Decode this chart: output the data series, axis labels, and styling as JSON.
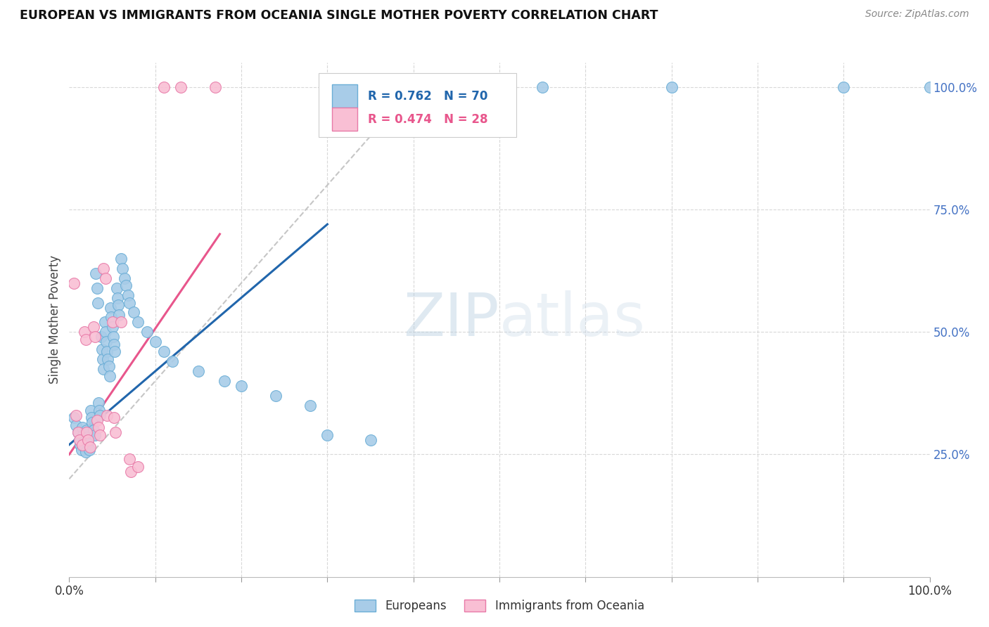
{
  "title": "EUROPEAN VS IMMIGRANTS FROM OCEANIA SINGLE MOTHER POVERTY CORRELATION CHART",
  "source": "Source: ZipAtlas.com",
  "ylabel": "Single Mother Poverty",
  "legend_blue_label": "Europeans",
  "legend_pink_label": "Immigrants from Oceania",
  "R_blue": 0.762,
  "N_blue": 70,
  "R_pink": 0.474,
  "N_pink": 28,
  "blue_color": "#a8cce8",
  "blue_edge_color": "#6baed6",
  "pink_color": "#f9bfd4",
  "pink_edge_color": "#e87aa8",
  "trend_blue_color": "#2166ac",
  "trend_pink_color": "#e8568c",
  "trend_gray_color": "#c0c0c0",
  "watermark_color": "#d5e6f5",
  "blue_points": [
    [
      0.005,
      0.325
    ],
    [
      0.008,
      0.31
    ],
    [
      0.01,
      0.295
    ],
    [
      0.012,
      0.28
    ],
    [
      0.013,
      0.27
    ],
    [
      0.014,
      0.26
    ],
    [
      0.015,
      0.305
    ],
    [
      0.016,
      0.29
    ],
    [
      0.017,
      0.275
    ],
    [
      0.018,
      0.265
    ],
    [
      0.019,
      0.255
    ],
    [
      0.02,
      0.3
    ],
    [
      0.021,
      0.285
    ],
    [
      0.022,
      0.272
    ],
    [
      0.023,
      0.26
    ],
    [
      0.025,
      0.34
    ],
    [
      0.026,
      0.325
    ],
    [
      0.027,
      0.315
    ],
    [
      0.028,
      0.3
    ],
    [
      0.03,
      0.29
    ],
    [
      0.031,
      0.62
    ],
    [
      0.032,
      0.59
    ],
    [
      0.033,
      0.56
    ],
    [
      0.034,
      0.355
    ],
    [
      0.035,
      0.34
    ],
    [
      0.036,
      0.33
    ],
    [
      0.037,
      0.49
    ],
    [
      0.038,
      0.465
    ],
    [
      0.039,
      0.445
    ],
    [
      0.04,
      0.425
    ],
    [
      0.041,
      0.52
    ],
    [
      0.042,
      0.5
    ],
    [
      0.043,
      0.48
    ],
    [
      0.044,
      0.46
    ],
    [
      0.045,
      0.445
    ],
    [
      0.046,
      0.43
    ],
    [
      0.047,
      0.41
    ],
    [
      0.048,
      0.55
    ],
    [
      0.049,
      0.53
    ],
    [
      0.05,
      0.51
    ],
    [
      0.051,
      0.49
    ],
    [
      0.052,
      0.475
    ],
    [
      0.053,
      0.46
    ],
    [
      0.055,
      0.59
    ],
    [
      0.056,
      0.57
    ],
    [
      0.057,
      0.555
    ],
    [
      0.058,
      0.535
    ],
    [
      0.06,
      0.65
    ],
    [
      0.062,
      0.63
    ],
    [
      0.064,
      0.61
    ],
    [
      0.066,
      0.595
    ],
    [
      0.068,
      0.575
    ],
    [
      0.07,
      0.56
    ],
    [
      0.075,
      0.54
    ],
    [
      0.08,
      0.52
    ],
    [
      0.09,
      0.5
    ],
    [
      0.1,
      0.48
    ],
    [
      0.11,
      0.46
    ],
    [
      0.12,
      0.44
    ],
    [
      0.15,
      0.42
    ],
    [
      0.18,
      0.4
    ],
    [
      0.2,
      0.39
    ],
    [
      0.24,
      0.37
    ],
    [
      0.28,
      0.35
    ],
    [
      0.3,
      0.29
    ],
    [
      0.35,
      0.28
    ],
    [
      1.0,
      1.0
    ],
    [
      0.7,
      1.0
    ],
    [
      0.55,
      1.0
    ],
    [
      0.9,
      1.0
    ]
  ],
  "pink_points": [
    [
      0.005,
      0.6
    ],
    [
      0.008,
      0.33
    ],
    [
      0.01,
      0.295
    ],
    [
      0.012,
      0.28
    ],
    [
      0.015,
      0.27
    ],
    [
      0.018,
      0.5
    ],
    [
      0.019,
      0.485
    ],
    [
      0.02,
      0.295
    ],
    [
      0.022,
      0.28
    ],
    [
      0.024,
      0.265
    ],
    [
      0.028,
      0.51
    ],
    [
      0.03,
      0.49
    ],
    [
      0.032,
      0.32
    ],
    [
      0.034,
      0.305
    ],
    [
      0.036,
      0.29
    ],
    [
      0.04,
      0.63
    ],
    [
      0.042,
      0.61
    ],
    [
      0.044,
      0.33
    ],
    [
      0.05,
      0.52
    ],
    [
      0.052,
      0.325
    ],
    [
      0.054,
      0.295
    ],
    [
      0.06,
      0.52
    ],
    [
      0.07,
      0.24
    ],
    [
      0.072,
      0.215
    ],
    [
      0.08,
      0.225
    ],
    [
      0.11,
      1.0
    ],
    [
      0.13,
      1.0
    ],
    [
      0.17,
      1.0
    ]
  ],
  "blue_trend": [
    0.0,
    0.3,
    0.27,
    0.72
  ],
  "pink_trend": [
    0.0,
    0.175,
    0.25,
    0.7
  ],
  "gray_trend": [
    0.0,
    0.4,
    0.2,
    1.0
  ],
  "xlim": [
    0.0,
    1.0
  ],
  "ylim": [
    0.0,
    1.05
  ]
}
